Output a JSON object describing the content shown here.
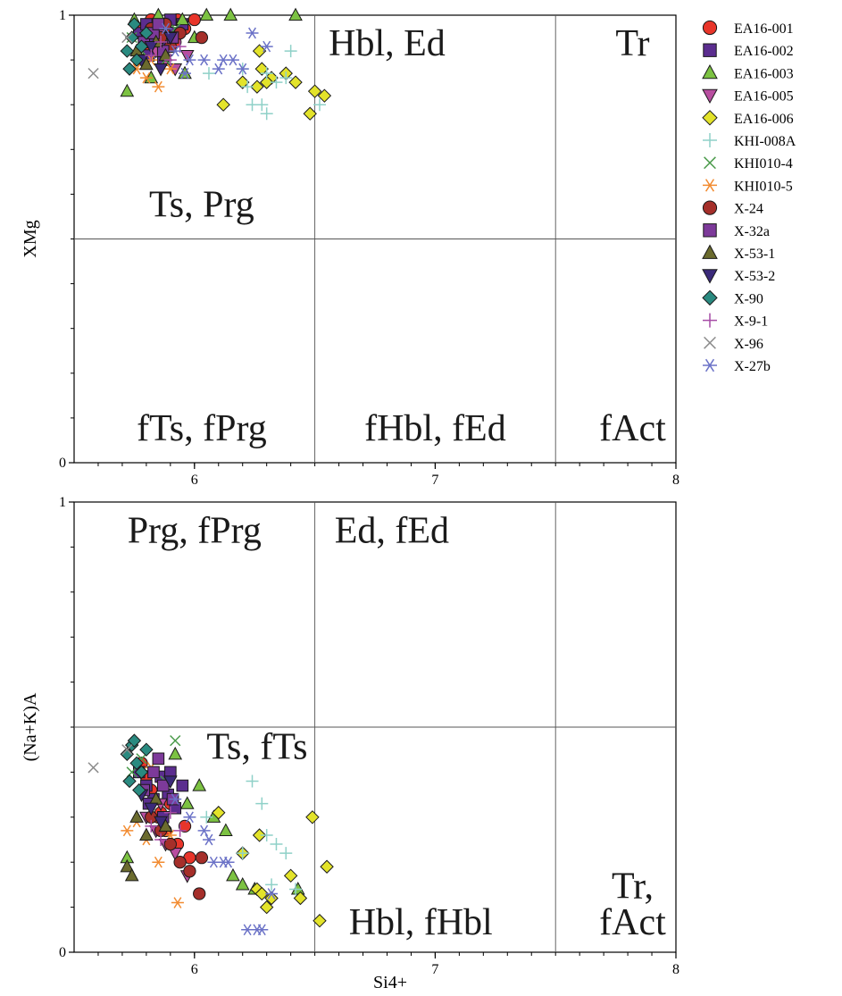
{
  "chart_data": [
    {
      "type": "scatter",
      "title": "",
      "xlabel": "",
      "ylabel": "XMg",
      "xlim": [
        5.5,
        8
      ],
      "ylim": [
        0,
        1
      ],
      "x_ticks": [
        "6",
        "7",
        "8"
      ],
      "y_ticks": [
        "0",
        "1"
      ],
      "grid": false,
      "divider_x": [
        6.5,
        7.5
      ],
      "divider_y": [
        0.5
      ],
      "field_labels": [
        {
          "text": "Hbl, Ed",
          "x": 6.8,
          "y": 0.91
        },
        {
          "text": "Tr",
          "x": 7.82,
          "y": 0.91
        },
        {
          "text": "Ts, Prg",
          "x": 6.03,
          "y": 0.55
        },
        {
          "text": "fTs, fPrg",
          "x": 6.03,
          "y": 0.05
        },
        {
          "text": "fHbl, fEd",
          "x": 7.0,
          "y": 0.05
        },
        {
          "text": "fAct",
          "x": 7.82,
          "y": 0.05
        }
      ]
    },
    {
      "type": "scatter",
      "title": "",
      "xlabel": "Si4+",
      "ylabel": "(Na+K)A",
      "xlim": [
        5.5,
        8
      ],
      "ylim": [
        0,
        1
      ],
      "x_ticks": [
        "6",
        "7",
        "8"
      ],
      "y_ticks": [
        "0",
        "1"
      ],
      "grid": false,
      "divider_x": [
        6.5,
        7.5
      ],
      "divider_y": [
        0.5
      ],
      "field_labels": [
        {
          "text": "Prg, fPrg",
          "x": 6.0,
          "y": 0.91
        },
        {
          "text": "Ed, fEd",
          "x": 6.82,
          "y": 0.91
        },
        {
          "text": "Ts, fTs",
          "x": 6.26,
          "y": 0.43
        },
        {
          "text": "Hbl, fHbl",
          "x": 6.94,
          "y": 0.04
        },
        {
          "text": "Tr,",
          "x": 7.82,
          "y": 0.12
        },
        {
          "text": "fAct",
          "x": 7.82,
          "y": 0.04
        }
      ]
    }
  ],
  "series": [
    {
      "name": "EA16-001",
      "marker": "circle",
      "color": "#e8352a",
      "top": [
        [
          5.78,
          0.97
        ],
        [
          5.82,
          0.99
        ],
        [
          5.85,
          0.95
        ],
        [
          5.88,
          0.98
        ],
        [
          5.9,
          0.96
        ],
        [
          5.93,
          0.99
        ],
        [
          5.96,
          0.97
        ],
        [
          6.0,
          0.99
        ],
        [
          5.8,
          0.93
        ],
        [
          5.86,
          0.92
        ],
        [
          5.92,
          0.94
        ]
      ],
      "bottom": [
        [
          5.78,
          0.42
        ],
        [
          5.82,
          0.36
        ],
        [
          5.85,
          0.3
        ],
        [
          5.88,
          0.27
        ],
        [
          5.9,
          0.33
        ],
        [
          5.93,
          0.24
        ],
        [
          5.96,
          0.28
        ],
        [
          5.8,
          0.39
        ],
        [
          5.86,
          0.31
        ],
        [
          5.98,
          0.21
        ]
      ]
    },
    {
      "name": "EA16-002",
      "marker": "square",
      "color": "#5b2d8f",
      "top": [
        [
          5.77,
          0.96
        ],
        [
          5.8,
          0.98
        ],
        [
          5.83,
          0.94
        ],
        [
          5.86,
          0.97
        ],
        [
          5.89,
          0.93
        ],
        [
          5.92,
          0.96
        ],
        [
          5.95,
          0.98
        ],
        [
          5.81,
          0.91
        ],
        [
          5.87,
          0.9
        ],
        [
          5.9,
          0.99
        ]
      ],
      "bottom": [
        [
          5.77,
          0.4
        ],
        [
          5.8,
          0.37
        ],
        [
          5.83,
          0.34
        ],
        [
          5.86,
          0.39
        ],
        [
          5.89,
          0.35
        ],
        [
          5.92,
          0.32
        ],
        [
          5.95,
          0.37
        ],
        [
          5.81,
          0.33
        ],
        [
          5.87,
          0.3
        ],
        [
          5.9,
          0.4
        ]
      ]
    },
    {
      "name": "EA16-003",
      "marker": "triangle",
      "color": "#7cc242",
      "top": [
        [
          5.75,
          0.99
        ],
        [
          5.85,
          1.0
        ],
        [
          5.95,
          0.99
        ],
        [
          6.05,
          1.0
        ],
        [
          6.15,
          1.0
        ],
        [
          6.42,
          1.0
        ],
        [
          5.9,
          0.93
        ],
        [
          5.72,
          0.83
        ],
        [
          5.82,
          0.86
        ],
        [
          5.96,
          0.87
        ],
        [
          6.0,
          0.95
        ],
        [
          5.78,
          0.9
        ]
      ],
      "bottom": [
        [
          5.92,
          0.44
        ],
        [
          6.02,
          0.37
        ],
        [
          6.08,
          0.3
        ],
        [
          6.13,
          0.27
        ],
        [
          6.16,
          0.17
        ],
        [
          6.2,
          0.15
        ],
        [
          6.25,
          0.14
        ],
        [
          6.43,
          0.14
        ],
        [
          5.97,
          0.33
        ],
        [
          5.72,
          0.21
        ]
      ]
    },
    {
      "name": "EA16-005",
      "marker": "triangle-down",
      "color": "#b84ea0",
      "top": [
        [
          5.8,
          0.95
        ],
        [
          5.84,
          0.92
        ],
        [
          5.88,
          0.9
        ],
        [
          5.92,
          0.88
        ],
        [
          5.97,
          0.91
        ],
        [
          5.86,
          0.96
        ]
      ],
      "bottom": [
        [
          5.8,
          0.3
        ],
        [
          5.84,
          0.27
        ],
        [
          5.88,
          0.24
        ],
        [
          5.92,
          0.22
        ],
        [
          5.97,
          0.17
        ],
        [
          5.86,
          0.33
        ]
      ]
    },
    {
      "name": "EA16-006",
      "marker": "diamond",
      "color": "#e3e32a",
      "top": [
        [
          6.12,
          0.8
        ],
        [
          6.2,
          0.85
        ],
        [
          6.26,
          0.84
        ],
        [
          6.28,
          0.88
        ],
        [
          6.32,
          0.86
        ],
        [
          6.38,
          0.87
        ],
        [
          6.42,
          0.85
        ],
        [
          6.48,
          0.78
        ],
        [
          6.5,
          0.83
        ],
        [
          6.54,
          0.82
        ],
        [
          6.27,
          0.92
        ],
        [
          6.3,
          0.85
        ]
      ],
      "bottom": [
        [
          6.1,
          0.31
        ],
        [
          6.2,
          0.22
        ],
        [
          6.26,
          0.14
        ],
        [
          6.28,
          0.13
        ],
        [
          6.32,
          0.12
        ],
        [
          6.4,
          0.17
        ],
        [
          6.44,
          0.12
        ],
        [
          6.49,
          0.3
        ],
        [
          6.52,
          0.07
        ],
        [
          6.55,
          0.19
        ],
        [
          6.27,
          0.26
        ],
        [
          6.3,
          0.1
        ]
      ]
    },
    {
      "name": "KHI-008A",
      "marker": "plus",
      "color": "#8fd1c8",
      "top": [
        [
          6.06,
          0.87
        ],
        [
          6.2,
          0.88
        ],
        [
          6.24,
          0.8
        ],
        [
          6.28,
          0.8
        ],
        [
          6.3,
          0.78
        ],
        [
          6.34,
          0.85
        ],
        [
          6.38,
          0.86
        ],
        [
          6.4,
          0.92
        ],
        [
          6.52,
          0.8
        ],
        [
          6.22,
          0.84
        ],
        [
          6.3,
          0.87
        ]
      ],
      "bottom": [
        [
          6.05,
          0.3
        ],
        [
          6.24,
          0.38
        ],
        [
          6.28,
          0.33
        ],
        [
          6.3,
          0.26
        ],
        [
          6.34,
          0.24
        ],
        [
          6.38,
          0.22
        ],
        [
          6.42,
          0.14
        ],
        [
          6.2,
          0.22
        ],
        [
          6.32,
          0.15
        ]
      ]
    },
    {
      "name": "KHI010-4",
      "marker": "x",
      "color": "#4a9a4a",
      "top": [
        [
          5.74,
          0.95
        ],
        [
          5.78,
          0.92
        ],
        [
          5.88,
          0.9
        ],
        [
          5.92,
          0.97
        ]
      ],
      "bottom": [
        [
          5.74,
          0.4
        ],
        [
          5.78,
          0.43
        ],
        [
          5.88,
          0.38
        ],
        [
          5.92,
          0.47
        ]
      ]
    },
    {
      "name": "KHI010-5",
      "marker": "asterisk",
      "color": "#f28b30",
      "top": [
        [
          5.76,
          0.88
        ],
        [
          5.8,
          0.86
        ],
        [
          5.85,
          0.84
        ],
        [
          5.9,
          0.88
        ],
        [
          5.82,
          0.9
        ]
      ],
      "bottom": [
        [
          5.72,
          0.27
        ],
        [
          5.76,
          0.29
        ],
        [
          5.8,
          0.25
        ],
        [
          5.85,
          0.2
        ],
        [
          5.9,
          0.26
        ],
        [
          5.93,
          0.11
        ],
        [
          5.82,
          0.41
        ]
      ]
    },
    {
      "name": "X-24",
      "marker": "circle",
      "color": "#a52f2a",
      "top": [
        [
          5.82,
          0.97
        ],
        [
          5.86,
          0.95
        ],
        [
          5.9,
          0.93
        ],
        [
          5.94,
          0.96
        ],
        [
          6.03,
          0.95
        ],
        [
          5.88,
          0.98
        ]
      ],
      "bottom": [
        [
          5.82,
          0.3
        ],
        [
          5.86,
          0.27
        ],
        [
          5.9,
          0.24
        ],
        [
          5.94,
          0.2
        ],
        [
          6.02,
          0.13
        ],
        [
          6.03,
          0.21
        ],
        [
          5.98,
          0.18
        ]
      ]
    },
    {
      "name": "X-32a",
      "marker": "square",
      "color": "#7d3a9a",
      "top": [
        [
          5.79,
          0.94
        ],
        [
          5.83,
          0.96
        ],
        [
          5.87,
          0.92
        ],
        [
          5.91,
          0.95
        ],
        [
          5.85,
          0.98
        ]
      ],
      "bottom": [
        [
          5.79,
          0.36
        ],
        [
          5.83,
          0.4
        ],
        [
          5.87,
          0.37
        ],
        [
          5.91,
          0.34
        ],
        [
          5.85,
          0.43
        ]
      ]
    },
    {
      "name": "X-53-1",
      "marker": "triangle",
      "color": "#6b6b2e",
      "top": [
        [
          5.76,
          0.92
        ],
        [
          5.8,
          0.89
        ],
        [
          5.84,
          0.94
        ],
        [
          5.88,
          0.91
        ]
      ],
      "bottom": [
        [
          5.72,
          0.19
        ],
        [
          5.74,
          0.17
        ],
        [
          5.76,
          0.3
        ],
        [
          5.8,
          0.26
        ],
        [
          5.84,
          0.34
        ],
        [
          5.88,
          0.28
        ]
      ]
    },
    {
      "name": "X-53-2",
      "marker": "triangle-down",
      "color": "#3b2a7a",
      "top": [
        [
          5.78,
          0.9
        ],
        [
          5.82,
          0.93
        ],
        [
          5.86,
          0.88
        ],
        [
          5.9,
          0.95
        ]
      ],
      "bottom": [
        [
          5.78,
          0.35
        ],
        [
          5.82,
          0.32
        ],
        [
          5.86,
          0.29
        ],
        [
          5.9,
          0.38
        ]
      ]
    },
    {
      "name": "X-90",
      "marker": "diamond",
      "color": "#2a8a80",
      "top": [
        [
          5.72,
          0.92
        ],
        [
          5.74,
          0.95
        ],
        [
          5.76,
          0.9
        ],
        [
          5.78,
          0.93
        ],
        [
          5.73,
          0.88
        ],
        [
          5.8,
          0.96
        ],
        [
          5.75,
          0.98
        ]
      ],
      "bottom": [
        [
          5.72,
          0.44
        ],
        [
          5.74,
          0.46
        ],
        [
          5.76,
          0.42
        ],
        [
          5.78,
          0.4
        ],
        [
          5.73,
          0.38
        ],
        [
          5.8,
          0.45
        ],
        [
          5.75,
          0.47
        ],
        [
          5.77,
          0.36
        ]
      ]
    },
    {
      "name": "X-9-1",
      "marker": "plus",
      "color": "#a64ca6",
      "top": [
        [
          5.82,
          0.91
        ],
        [
          5.86,
          0.94
        ],
        [
          5.9,
          0.9
        ],
        [
          5.94,
          0.93
        ]
      ],
      "bottom": [
        [
          5.82,
          0.28
        ],
        [
          5.86,
          0.25
        ],
        [
          5.9,
          0.31
        ],
        [
          5.94,
          0.27
        ]
      ]
    },
    {
      "name": "X-96",
      "marker": "x",
      "color": "#8c8c8c",
      "top": [
        [
          5.58,
          0.87
        ],
        [
          5.72,
          0.95
        ]
      ],
      "bottom": [
        [
          5.58,
          0.41
        ],
        [
          5.72,
          0.45
        ]
      ]
    },
    {
      "name": "X-27b",
      "marker": "asterisk",
      "color": "#6b72c7",
      "top": [
        [
          5.92,
          0.92
        ],
        [
          5.98,
          0.9
        ],
        [
          6.04,
          0.9
        ],
        [
          6.1,
          0.88
        ],
        [
          6.12,
          0.9
        ],
        [
          6.16,
          0.9
        ],
        [
          6.2,
          0.88
        ],
        [
          6.24,
          0.96
        ],
        [
          6.3,
          0.93
        ],
        [
          5.88,
          0.97
        ],
        [
          5.96,
          0.87
        ]
      ],
      "bottom": [
        [
          5.92,
          0.34
        ],
        [
          5.98,
          0.3
        ],
        [
          6.04,
          0.27
        ],
        [
          6.08,
          0.2
        ],
        [
          6.12,
          0.2
        ],
        [
          6.14,
          0.2
        ],
        [
          6.22,
          0.05
        ],
        [
          6.26,
          0.05
        ],
        [
          6.28,
          0.05
        ],
        [
          6.32,
          0.13
        ],
        [
          6.06,
          0.25
        ]
      ]
    }
  ]
}
